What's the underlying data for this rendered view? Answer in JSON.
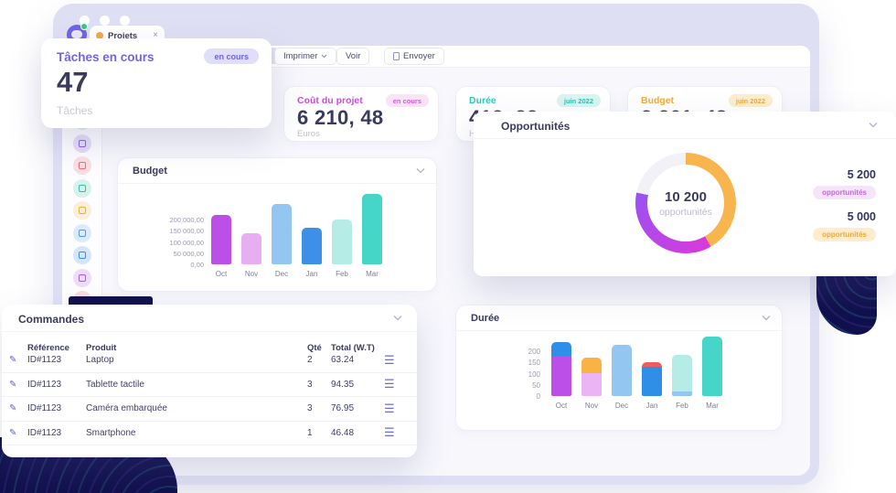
{
  "window": {
    "tab": {
      "label": "Projets",
      "close": "×"
    }
  },
  "toolbar": {
    "print_label": "Imprimer",
    "view_label": "Voir",
    "send_label": "Envoyer"
  },
  "tasks_card": {
    "title": "Tâches en cours",
    "badge": "en cours",
    "badge_bg": "#e0def8",
    "badge_color": "#6e64e6",
    "value": "47",
    "label": "Tâches"
  },
  "kpis": [
    {
      "title": "Coût du projet",
      "accent": "#c94fd8",
      "badge": "en cours",
      "badge_bg": "#fae3f7",
      "badge_color": "#d356de",
      "value": "6 210, 48",
      "unit": "Euros"
    },
    {
      "title": "Durée",
      "accent": "#2fc9bf",
      "badge": "juin 2022",
      "badge_bg": "#d8f5f0",
      "badge_color": "#2bbfb2",
      "value": "412, 32",
      "unit": "Heures"
    },
    {
      "title": "Budget",
      "accent": "#f4a93f",
      "badge": "juin 2022",
      "badge_bg": "#fcedcd",
      "badge_color": "#efa93e",
      "value": "2 261, 48",
      "unit": ""
    }
  ],
  "chart_data": [
    {
      "id": "budget",
      "type": "bar",
      "title": "Budget",
      "categories": [
        "Oct",
        "Nov",
        "Dec",
        "Jan",
        "Feb",
        "Mar"
      ],
      "values": [
        220000,
        140000,
        270000,
        165000,
        200000,
        315000
      ],
      "bar_colors": [
        "#bb4fe8",
        "#e8aef2",
        "#94c6f2",
        "#3d8fe8",
        "#b5ece6",
        "#45d6c8"
      ],
      "y_ticks": [
        "200 000,00",
        "150 000,00",
        "100 000,00",
        "50 000,00",
        "0,00"
      ],
      "tick_values": [
        200000,
        150000,
        100000,
        50000,
        0
      ],
      "ylim": [
        0,
        320000
      ],
      "xlabel": "",
      "ylabel": "",
      "grid": false,
      "legend": false
    },
    {
      "id": "opportunites",
      "type": "donut",
      "title": "Opportunités",
      "center_value": "10 200",
      "center_label": "opportunités",
      "total": 10200,
      "track_color": "#f1f1f7",
      "segments": [
        {
          "display": "5 200",
          "value": 5200,
          "label": "opportunités",
          "color_start": "#da39db",
          "color_end": "#9b51f2",
          "badge_bg": "#f6e4fb",
          "badge_color": "#c468da"
        },
        {
          "display": "5 000",
          "value": 5000,
          "label": "opportunités",
          "color_start": "#f8b54e",
          "color_end": "#f8b54e",
          "badge_bg": "#fdedcc",
          "badge_color": "#efa93e"
        }
      ],
      "visual_sweep_deg": {
        "orange": 150,
        "purple": 132,
        "track": 78
      }
    },
    {
      "id": "duree",
      "type": "stacked_bar",
      "title": "Durée",
      "categories": [
        "Oct",
        "Nov",
        "Dec",
        "Jan",
        "Feb",
        "Mar"
      ],
      "bars": [
        [
          {
            "value": 180,
            "color": "#bb4fe8"
          },
          {
            "value": 60,
            "color": "#2f8ee8"
          }
        ],
        [
          {
            "value": 100,
            "color": "#eab4f5"
          },
          {
            "value": 70,
            "color": "#f9b344"
          }
        ],
        [
          {
            "value": 230,
            "color": "#94c6f2"
          }
        ],
        [
          {
            "value": 130,
            "color": "#2f8ee8"
          },
          {
            "value": 20,
            "color": "#f05c5c"
          }
        ],
        [
          {
            "value": 20,
            "color": "#94c6f2"
          },
          {
            "value": 165,
            "color": "#b5ece6"
          }
        ],
        [
          {
            "value": 265,
            "color": "#45d6c8"
          }
        ]
      ],
      "y_ticks": [
        "200",
        "150",
        "100",
        "50",
        "0"
      ],
      "tick_values": [
        200,
        150,
        100,
        50,
        0
      ],
      "ylim": [
        0,
        270
      ],
      "grid": false,
      "legend": false
    }
  ],
  "commandes": {
    "title": "Commandes",
    "columns": [
      "Référence",
      "Produit",
      "Qté",
      "Total (W.T)"
    ],
    "rows": [
      {
        "ref": "ID#1123",
        "produit": "Laptop",
        "qte": "2",
        "total": "63.24"
      },
      {
        "ref": "ID#1123",
        "produit": "Tablette tactile",
        "qte": "3",
        "total": "94.35"
      },
      {
        "ref": "ID#1123",
        "produit": "Caméra embarquée",
        "qte": "3",
        "total": "76.95"
      },
      {
        "ref": "ID#1123",
        "produit": "Smartphone",
        "qte": "1",
        "total": "46.48"
      }
    ]
  },
  "sidebar": {
    "icons": [
      {
        "name": "chart-icon",
        "bg": "#d8f2e2",
        "fg": "#3fc98f"
      },
      {
        "name": "cart-icon",
        "bg": "#e6dcf8",
        "fg": "#8b5cf6"
      },
      {
        "name": "clock-icon",
        "bg": "#fbdfe2",
        "fg": "#ef6f7d"
      },
      {
        "name": "wallet-icon",
        "bg": "#d5f3ec",
        "fg": "#2fbfa5"
      },
      {
        "name": "file-icon",
        "bg": "#fdeed6",
        "fg": "#f2a93b"
      },
      {
        "name": "phone-icon",
        "bg": "#dcebfb",
        "fg": "#4d96ee"
      },
      {
        "name": "calendar-icon",
        "bg": "#d4e6fb",
        "fg": "#3f8ce8"
      },
      {
        "name": "package-icon",
        "bg": "#eddcf9",
        "fg": "#a855f7"
      },
      {
        "name": "gear-icon",
        "bg": "#fbdcdc",
        "fg": "#ee6a6a"
      }
    ]
  }
}
